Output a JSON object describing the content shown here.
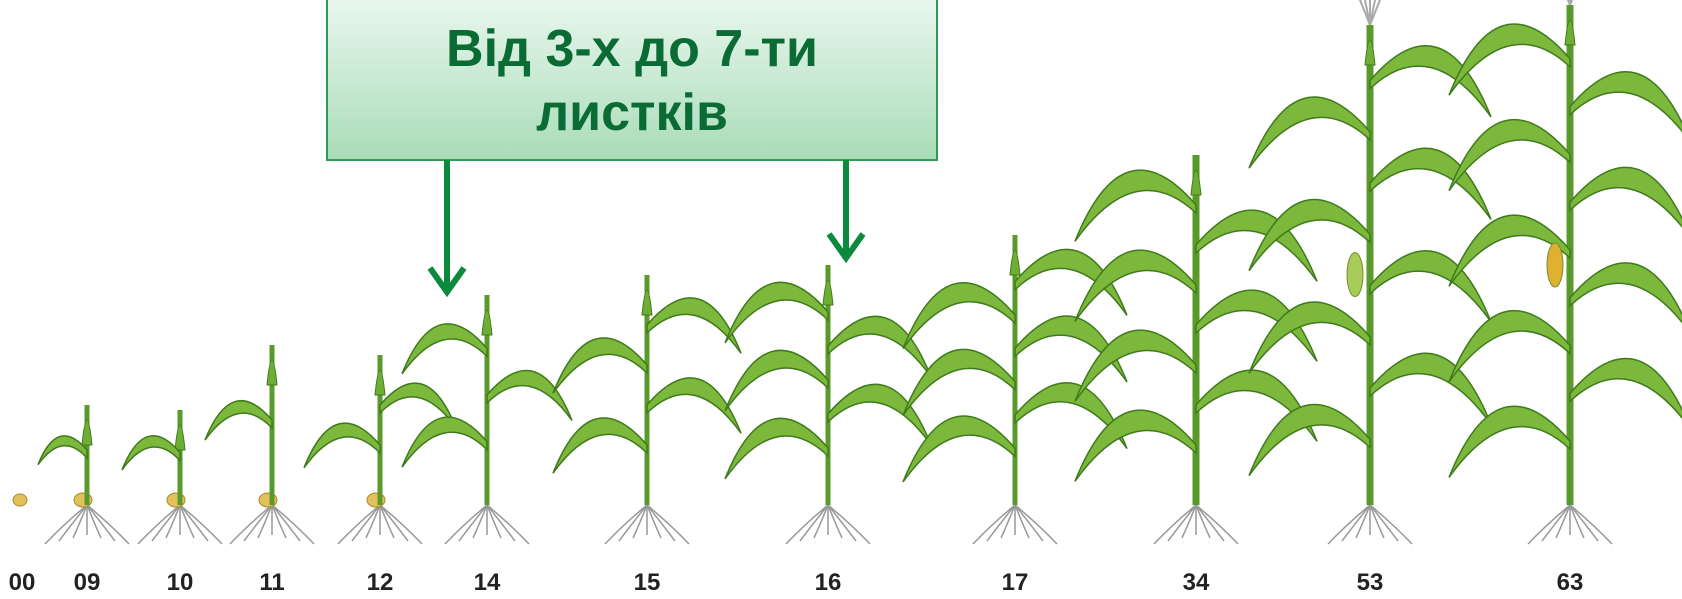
{
  "callout": {
    "lines": [
      "Від 3-х до 7-ти",
      "листків"
    ]
  },
  "stages": [
    "00",
    "09",
    "10",
    "11",
    "12",
    "14",
    "15",
    "16",
    "17",
    "34",
    "53",
    "63"
  ]
}
